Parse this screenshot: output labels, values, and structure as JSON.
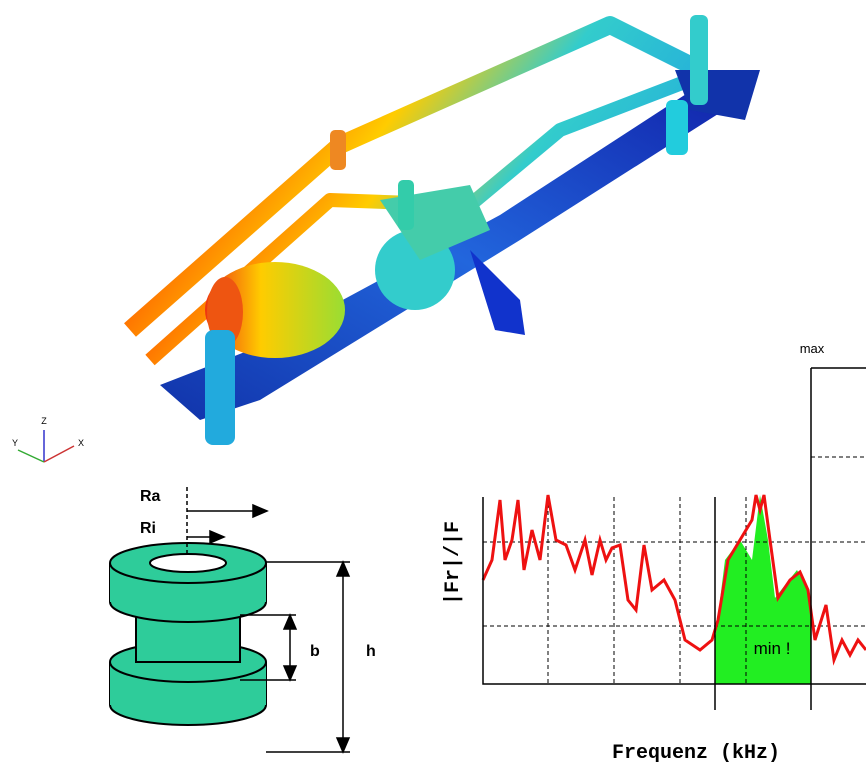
{
  "axis_triad": {
    "z": "Z",
    "y": "Y",
    "x": "X"
  },
  "bushing": {
    "ra": "Ra",
    "ri": "Ri",
    "b": "b",
    "h": "h"
  },
  "plot": {
    "y_label": "|Fr|/|F",
    "x_label": "Frequenz (kHz)",
    "band_label": "min !",
    "max_label": "max"
  }
}
